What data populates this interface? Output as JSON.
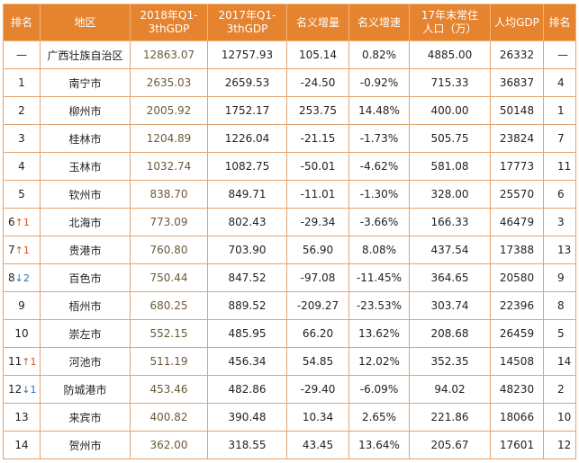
{
  "table": {
    "headers": [
      {
        "line1": "排名",
        "line2": ""
      },
      {
        "line1": "地区",
        "line2": ""
      },
      {
        "line1": "2018年Q1-",
        "line2": "3thGDP"
      },
      {
        "line1": "2017年Q1-",
        "line2": "3thGDP"
      },
      {
        "line1": "名义增量",
        "line2": ""
      },
      {
        "line1": "名义增速",
        "line2": ""
      },
      {
        "line1": "17年末常住",
        "line2": "人口（万）"
      },
      {
        "line1": "人均GDP",
        "line2": ""
      },
      {
        "line1": "排名",
        "line2": ""
      }
    ],
    "rows": [
      {
        "rank": "—",
        "trend": "",
        "trend_dir": "",
        "region": "广西壮族自治区",
        "gdp2018": "12863.07",
        "gdp2017": "12757.93",
        "increase": "105.14",
        "growth": "0.82%",
        "population": "4885.00",
        "per_capita": "26332",
        "per_capita_rank": "—"
      },
      {
        "rank": "1",
        "trend": "",
        "trend_dir": "",
        "region": "南宁市",
        "gdp2018": "2635.03",
        "gdp2017": "2659.53",
        "increase": "-24.50",
        "growth": "-0.92%",
        "population": "715.33",
        "per_capita": "36837",
        "per_capita_rank": "4"
      },
      {
        "rank": "2",
        "trend": "",
        "trend_dir": "",
        "region": "柳州市",
        "gdp2018": "2005.92",
        "gdp2017": "1752.17",
        "increase": "253.75",
        "growth": "14.48%",
        "population": "400.00",
        "per_capita": "50148",
        "per_capita_rank": "1"
      },
      {
        "rank": "3",
        "trend": "",
        "trend_dir": "",
        "region": "桂林市",
        "gdp2018": "1204.89",
        "gdp2017": "1226.04",
        "increase": "-21.15",
        "growth": "-1.73%",
        "population": "505.75",
        "per_capita": "23824",
        "per_capita_rank": "7"
      },
      {
        "rank": "4",
        "trend": "",
        "trend_dir": "",
        "region": "玉林市",
        "gdp2018": "1032.74",
        "gdp2017": "1082.75",
        "increase": "-50.01",
        "growth": "-4.62%",
        "population": "581.08",
        "per_capita": "17773",
        "per_capita_rank": "11"
      },
      {
        "rank": "5",
        "trend": "",
        "trend_dir": "",
        "region": "钦州市",
        "gdp2018": "838.70",
        "gdp2017": "849.71",
        "increase": "-11.01",
        "growth": "-1.30%",
        "population": "328.00",
        "per_capita": "25570",
        "per_capita_rank": "6"
      },
      {
        "rank": "6",
        "trend": "↑1",
        "trend_dir": "up",
        "region": "北海市",
        "gdp2018": "773.09",
        "gdp2017": "802.43",
        "increase": "-29.34",
        "growth": "-3.66%",
        "population": "166.33",
        "per_capita": "46479",
        "per_capita_rank": "3"
      },
      {
        "rank": "7",
        "trend": "↑1",
        "trend_dir": "up",
        "region": "贵港市",
        "gdp2018": "760.80",
        "gdp2017": "703.90",
        "increase": "56.90",
        "growth": "8.08%",
        "population": "437.54",
        "per_capita": "17388",
        "per_capita_rank": "13"
      },
      {
        "rank": "8",
        "trend": "↓2",
        "trend_dir": "down",
        "region": "百色市",
        "gdp2018": "750.44",
        "gdp2017": "847.52",
        "increase": "-97.08",
        "growth": "-11.45%",
        "population": "364.65",
        "per_capita": "20580",
        "per_capita_rank": "9"
      },
      {
        "rank": "9",
        "trend": "",
        "trend_dir": "",
        "region": "梧州市",
        "gdp2018": "680.25",
        "gdp2017": "889.52",
        "increase": "-209.27",
        "growth": "-23.53%",
        "population": "303.74",
        "per_capita": "22396",
        "per_capita_rank": "8"
      },
      {
        "rank": "10",
        "trend": "",
        "trend_dir": "",
        "region": "崇左市",
        "gdp2018": "552.15",
        "gdp2017": "485.95",
        "increase": "66.20",
        "growth": "13.62%",
        "population": "208.68",
        "per_capita": "26459",
        "per_capita_rank": "5"
      },
      {
        "rank": "11",
        "trend": "↑1",
        "trend_dir": "up",
        "region": "河池市",
        "gdp2018": "511.19",
        "gdp2017": "456.34",
        "increase": "54.85",
        "growth": "12.02%",
        "population": "352.35",
        "per_capita": "14508",
        "per_capita_rank": "14"
      },
      {
        "rank": "12",
        "trend": "↓1",
        "trend_dir": "down",
        "region": "防城港市",
        "gdp2018": "453.46",
        "gdp2017": "482.86",
        "increase": "-29.40",
        "growth": "-6.09%",
        "population": "94.02",
        "per_capita": "48230",
        "per_capita_rank": "2"
      },
      {
        "rank": "13",
        "trend": "",
        "trend_dir": "",
        "region": "来宾市",
        "gdp2018": "400.82",
        "gdp2017": "390.48",
        "increase": "10.34",
        "growth": "2.65%",
        "population": "221.86",
        "per_capita": "18066",
        "per_capita_rank": "10"
      },
      {
        "rank": "14",
        "trend": "",
        "trend_dir": "",
        "region": "贺州市",
        "gdp2018": "362.00",
        "gdp2017": "318.55",
        "increase": "43.45",
        "growth": "13.64%",
        "population": "205.67",
        "per_capita": "17601",
        "per_capita_rank": "12"
      }
    ]
  },
  "colors": {
    "header_bg": "#e5832f",
    "header_text": "#ffffff",
    "grid": "#e3a370",
    "trend_up": "#d9531e",
    "trend_down": "#2f6fb2"
  }
}
